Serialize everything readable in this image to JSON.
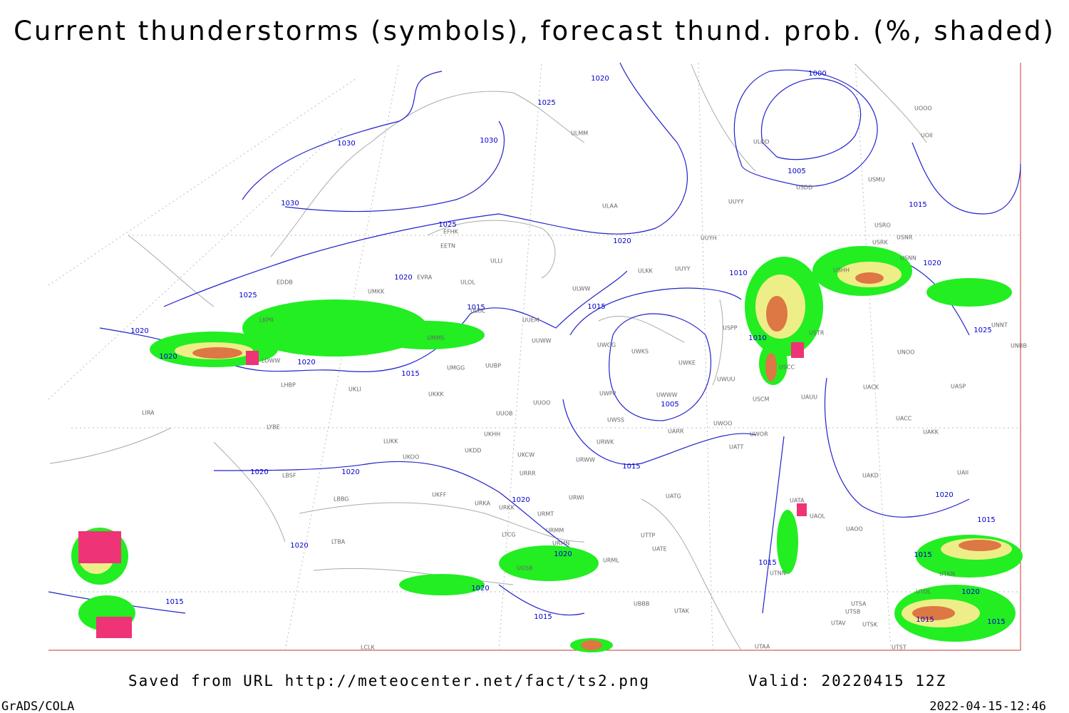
{
  "header": {
    "title": "Current thunderstorms (symbols), forecast thund. prob. (%, shaded)"
  },
  "footer": {
    "source": "Saved from URL http://meteocenter.net/fact/ts2.png",
    "valid": "Valid: 20220415 12Z",
    "software": "GrADS/COLA",
    "timestamp": "2022-04-15-12:46"
  },
  "isobar_labels": [
    1020,
    1025,
    1030,
    1030,
    1030,
    1025,
    1020,
    1020,
    1025,
    1015,
    1015,
    1010,
    1010,
    1000,
    1005,
    1015,
    1020,
    1025,
    1020,
    1020,
    1020,
    1015,
    1005,
    1015,
    1020,
    1020,
    1020,
    1020,
    1015,
    1020,
    1020,
    1015,
    1015,
    1020,
    1020,
    1015,
    1015,
    1015,
    1015
  ],
  "stations": [
    "ULMM",
    "ULAA",
    "UUYY",
    "UUYH",
    "ULKK",
    "UUYY",
    "ULWW",
    "EFHK",
    "EETN",
    "EVRA",
    "ULOL",
    "ULLI",
    "UMKK",
    "ULOL",
    "LKPR",
    "LOWW",
    "LHBP",
    "UMMS",
    "UMGG",
    "UUBP",
    "UUEM",
    "UUWW",
    "UWGG",
    "UWKS",
    "UWKE",
    "UWUU",
    "UWPP",
    "UWWW",
    "USPP",
    "USTR",
    "USCC",
    "USCM",
    "UAUU",
    "UACK",
    "UNOO",
    "UNNT",
    "UNBB",
    "UASP",
    "UACC",
    "UAKK",
    "UWOO",
    "UWOR",
    "UATT",
    "UARR",
    "URWW",
    "UWSS",
    "URWK",
    "UUOO",
    "UUOB",
    "UKKK",
    "UKLI",
    "LUKK",
    "UKOO",
    "UKHH",
    "UKDD",
    "UKCW",
    "URRR",
    "LBSF",
    "LYBE",
    "LIRA",
    "LBBG",
    "UKFF",
    "URWI",
    "UATG",
    "UATA",
    "UAOL",
    "UAOO",
    "UAKD",
    "UAII",
    "UTTP",
    "UATE",
    "URMM",
    "URMN",
    "URML",
    "LTBA",
    "UGSB",
    "UBBB",
    "UTAK",
    "UTAA",
    "UTSA",
    "UTSB",
    "UTAV",
    "UTSK",
    "UTDL",
    "UTKN",
    "UTST",
    "UTNN",
    "USRO",
    "USRK",
    "USNR",
    "USNN",
    "USHH",
    "ULOD",
    "USDD",
    "USMU",
    "UOOO",
    "UOII",
    "EDDB",
    "URKK",
    "URKA",
    "URMT",
    "LTCG",
    "LCLK"
  ]
}
